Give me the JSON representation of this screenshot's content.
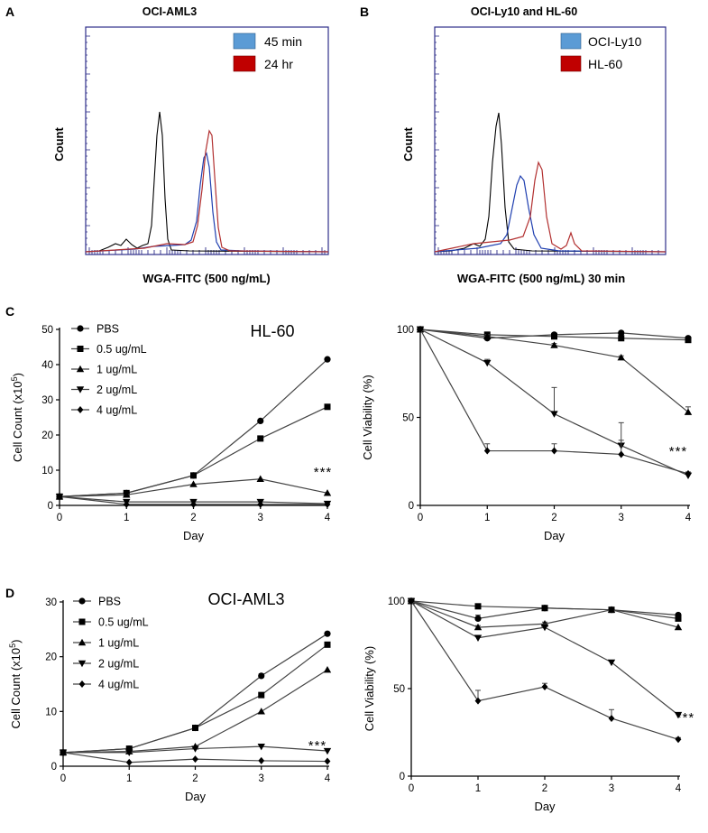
{
  "chart_data": [
    {
      "panel": "A",
      "type": "histogram",
      "title": "OCI-AML3",
      "xlabel": "WGA-FITC (500 ng/mL)",
      "ylabel": "Count",
      "legend": [
        {
          "name": "45 min",
          "color": "#5b9bd5"
        },
        {
          "name": "24 hr",
          "color": "#c00000"
        }
      ]
    },
    {
      "panel": "B",
      "type": "histogram",
      "title": "OCI-Ly10 and HL-60",
      "xlabel": "WGA-FITC (500 ng/mL) 30 min",
      "ylabel": "Count",
      "legend": [
        {
          "name": "OCI-Ly10",
          "color": "#5b9bd5"
        },
        {
          "name": "HL-60",
          "color": "#c00000"
        }
      ]
    },
    {
      "panel": "C",
      "type": "line",
      "title": "HL-60",
      "xlabel": "Day",
      "ylabel_main": "Cell Count (x10",
      "ylabel_sup": "5",
      "ylabel_close": ")",
      "x": [
        0,
        1,
        2,
        3,
        4
      ],
      "ylim": [
        0,
        50
      ],
      "yticks": [
        0,
        10,
        20,
        30,
        40,
        50
      ],
      "series": [
        {
          "name": "PBS",
          "marker": "circle",
          "values": [
            2.5,
            3.5,
            8.5,
            24,
            41.5
          ]
        },
        {
          "name": "0.5 ug/mL",
          "marker": "square",
          "values": [
            2.5,
            3.5,
            8.5,
            19,
            28
          ]
        },
        {
          "name": "1 ug/mL",
          "marker": "triangle-up",
          "values": [
            2.5,
            3,
            6,
            7.5,
            3.5
          ]
        },
        {
          "name": "2 ug/mL",
          "marker": "triangle-down",
          "values": [
            2.5,
            1,
            1,
            1,
            0.5
          ]
        },
        {
          "name": "4 ug/mL",
          "marker": "diamond",
          "values": [
            2.5,
            0.3,
            0.3,
            0.3,
            0.3
          ]
        }
      ],
      "annotation": "***"
    },
    {
      "panel": "C-right",
      "type": "line",
      "xlabel": "Day",
      "ylabel": "Cell Viability (%)",
      "x": [
        0,
        1,
        2,
        3,
        4
      ],
      "ylim": [
        0,
        100
      ],
      "yticks": [
        0,
        50,
        100
      ],
      "series": [
        {
          "name": "PBS",
          "marker": "circle",
          "values": [
            100,
            95,
            97,
            98,
            95
          ],
          "err": [
            0,
            1,
            1,
            1,
            1
          ]
        },
        {
          "name": "0.5 ug/mL",
          "marker": "square",
          "values": [
            100,
            97,
            96,
            95,
            94
          ],
          "err": [
            0,
            1,
            1,
            1,
            1
          ]
        },
        {
          "name": "1 ug/mL",
          "marker": "triangle-up",
          "values": [
            100,
            96,
            91,
            84,
            53
          ],
          "err": [
            0,
            1,
            1,
            1,
            3
          ]
        },
        {
          "name": "2 ug/mL",
          "marker": "triangle-down",
          "values": [
            100,
            81,
            52,
            34,
            17
          ],
          "err": [
            0,
            2,
            15,
            3,
            1
          ]
        },
        {
          "name": "4 ug/mL",
          "marker": "diamond",
          "values": [
            100,
            31,
            31,
            29,
            18
          ],
          "err": [
            0,
            4,
            4,
            18,
            1
          ]
        }
      ],
      "annotation": "***"
    },
    {
      "panel": "D",
      "type": "line",
      "title": "OCI-AML3",
      "xlabel": "Day",
      "ylabel_main": "Cell Count (x10",
      "ylabel_sup": "5",
      "ylabel_close": ")",
      "x": [
        0,
        1,
        2,
        3,
        4
      ],
      "ylim": [
        0,
        30
      ],
      "yticks": [
        0,
        10,
        20,
        30
      ],
      "series": [
        {
          "name": "PBS",
          "marker": "circle",
          "values": [
            2.5,
            3.2,
            7,
            16.5,
            24.2
          ],
          "err": [
            0,
            0,
            0,
            0.4,
            0
          ]
        },
        {
          "name": "0.5 ug/mL",
          "marker": "square",
          "values": [
            2.5,
            3.2,
            7,
            13,
            22.2
          ],
          "err": [
            0,
            0,
            0,
            0,
            0
          ]
        },
        {
          "name": "1 ug/mL",
          "marker": "triangle-up",
          "values": [
            2.5,
            2.7,
            3.6,
            10,
            17.6
          ],
          "err": [
            0,
            0,
            0,
            0,
            0
          ]
        },
        {
          "name": "2 ug/mL",
          "marker": "triangle-down",
          "values": [
            2.5,
            2.5,
            3.2,
            3.6,
            2.8
          ],
          "err": [
            0,
            0,
            0,
            0,
            0
          ]
        },
        {
          "name": "4 ug/mL",
          "marker": "diamond",
          "values": [
            2.5,
            0.7,
            1.3,
            1,
            0.9
          ],
          "err": [
            0,
            0,
            0,
            0,
            0
          ]
        }
      ],
      "annotation": "***"
    },
    {
      "panel": "D-right",
      "type": "line",
      "xlabel": "Day",
      "ylabel": "Cell Viability (%)",
      "x": [
        0,
        1,
        2,
        3,
        4
      ],
      "ylim": [
        0,
        100
      ],
      "yticks": [
        0,
        50,
        100
      ],
      "series": [
        {
          "name": "PBS",
          "marker": "circle",
          "values": [
            100,
            90,
            96,
            95,
            92
          ],
          "err": [
            0,
            2,
            0,
            1,
            1
          ]
        },
        {
          "name": "0.5 ug/mL",
          "marker": "square",
          "values": [
            100,
            97,
            96,
            95,
            90
          ],
          "err": [
            0,
            0,
            0,
            0,
            0
          ]
        },
        {
          "name": "1 ug/mL",
          "marker": "triangle-up",
          "values": [
            100,
            85,
            87,
            95,
            85
          ],
          "err": [
            0,
            1,
            1,
            0,
            0
          ]
        },
        {
          "name": "2 ug/mL",
          "marker": "triangle-down",
          "values": [
            100,
            79,
            85,
            65,
            35
          ],
          "err": [
            0,
            1,
            2,
            0,
            0
          ]
        },
        {
          "name": "4 ug/mL",
          "marker": "diamond",
          "values": [
            100,
            43,
            51,
            33,
            21
          ],
          "err": [
            0,
            6,
            2,
            5,
            1
          ]
        }
      ],
      "annotation": "***"
    }
  ],
  "panel_letters": {
    "a": "A",
    "b": "B",
    "c": "C",
    "d": "D"
  }
}
